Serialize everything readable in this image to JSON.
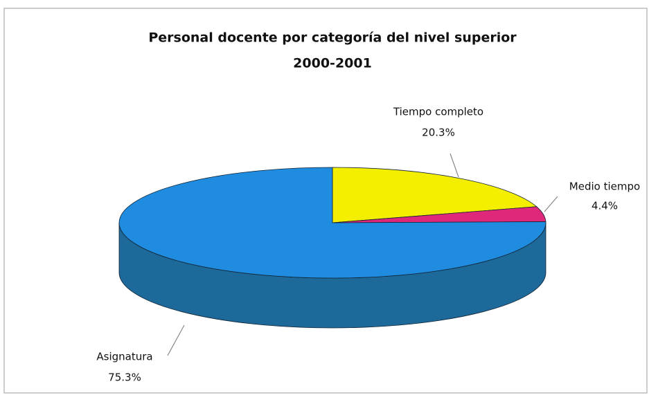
{
  "chart_data": {
    "type": "pie3d",
    "title": "Personal docente por categoría del nivel superior",
    "subtitle": "2000-2001",
    "categories": [
      "Tiempo completo",
      "Medio tiempo",
      "Asignatura"
    ],
    "values": [
      20.3,
      4.4,
      75.3
    ],
    "value_labels": [
      "20.3%",
      "4.4%",
      "75.3%"
    ],
    "colors": [
      "#f4ee00",
      "#e0287a",
      "#1f8ce0"
    ],
    "side_colors": [
      "#b8b200",
      "#a01a55",
      "#1d6a9a"
    ]
  }
}
